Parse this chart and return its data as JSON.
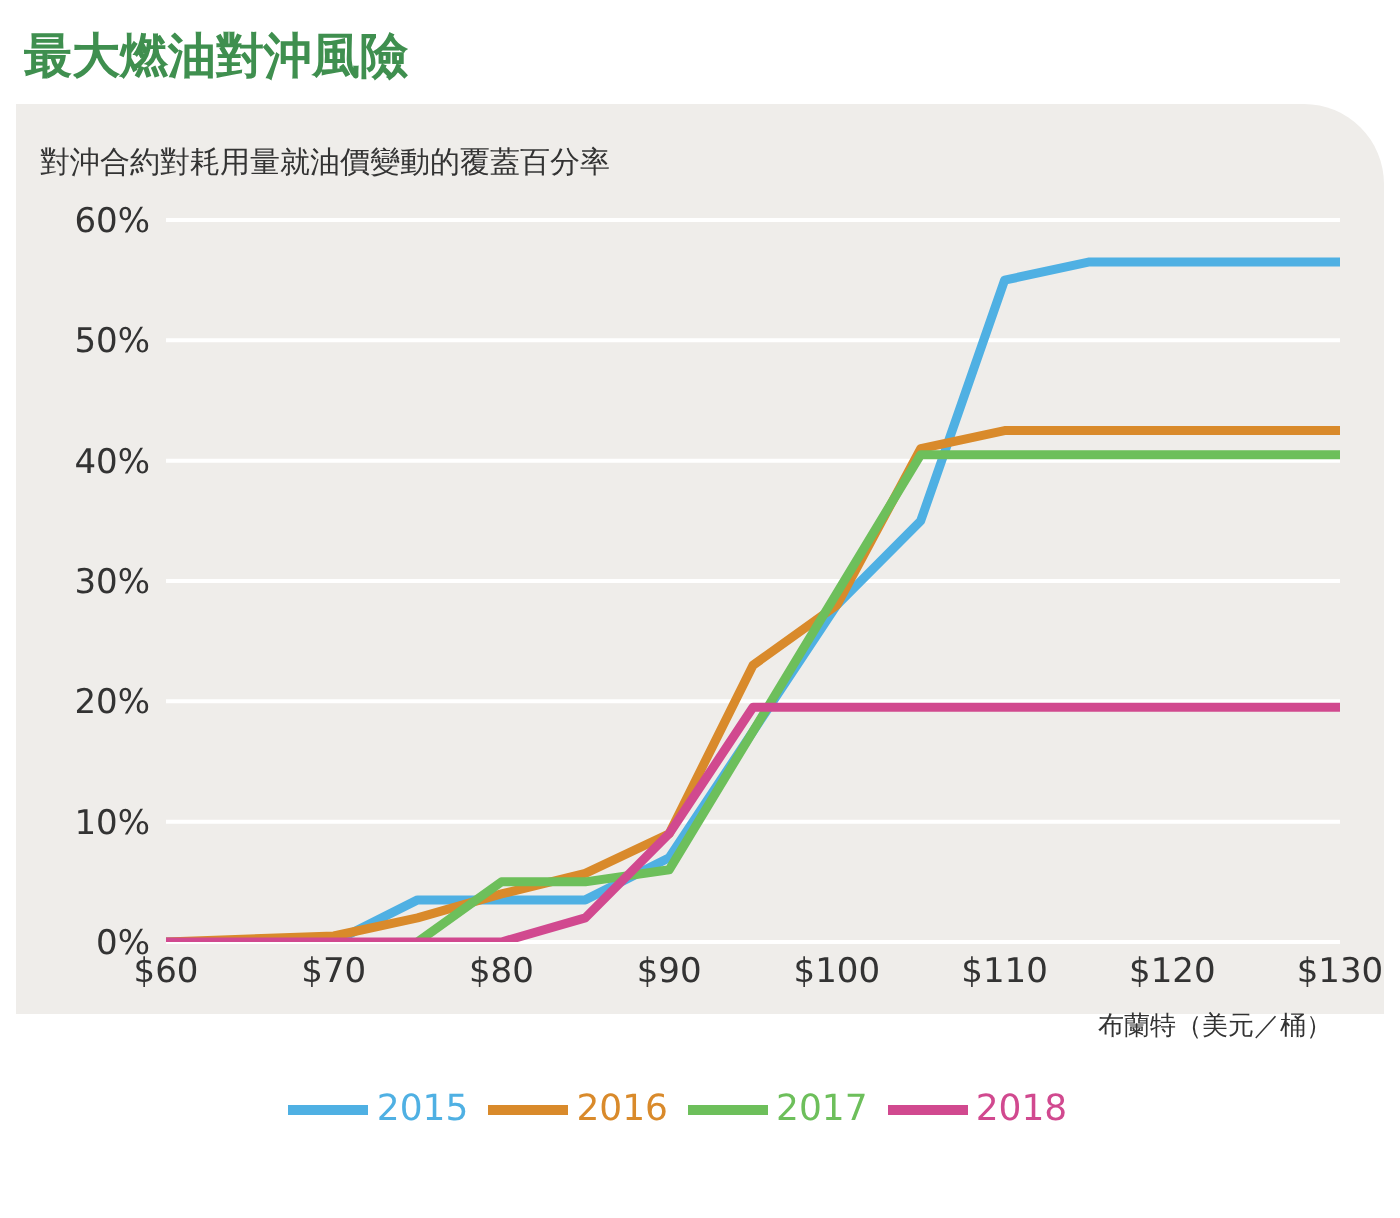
{
  "chart_data": {
    "type": "line",
    "title": "最大燃油對沖風險",
    "ylabel": "對沖合約對耗用量就油價變動的覆蓋百分率",
    "xlabel": "布蘭特（美元／桶）",
    "xlim": [
      60,
      130
    ],
    "xticks": [
      {
        "value": 60,
        "label": "$60"
      },
      {
        "value": 70,
        "label": "$70"
      },
      {
        "value": 80,
        "label": "$80"
      },
      {
        "value": 90,
        "label": "$90"
      },
      {
        "value": 100,
        "label": "$100"
      },
      {
        "value": 110,
        "label": "$110"
      },
      {
        "value": 120,
        "label": "$120"
      },
      {
        "value": 130,
        "label": "$130"
      }
    ],
    "ylim": [
      0,
      60
    ],
    "yticks": [
      {
        "value": 0,
        "label": "0%"
      },
      {
        "value": 10,
        "label": "10%"
      },
      {
        "value": 20,
        "label": "20%"
      },
      {
        "value": 30,
        "label": "30%"
      },
      {
        "value": 40,
        "label": "40%"
      },
      {
        "value": 50,
        "label": "50%"
      },
      {
        "value": 60,
        "label": "60%"
      }
    ],
    "grid": "y",
    "legend": "bottom",
    "marker": "none",
    "line_style": "solid",
    "series": [
      {
        "name": "2015",
        "color": "#4fb0e3",
        "x": [
          60,
          70,
          75,
          85,
          90,
          100,
          105,
          110,
          115,
          130
        ],
        "values": [
          0,
          0,
          3.5,
          3.5,
          7,
          28,
          35,
          55,
          56.5,
          56.5
        ]
      },
      {
        "name": "2016",
        "color": "#d98a2b",
        "x": [
          60,
          70,
          75,
          80,
          85,
          90,
          95,
          100,
          105,
          110,
          130
        ],
        "values": [
          0,
          0.5,
          2,
          4,
          5.7,
          9,
          23,
          28,
          41,
          42.5,
          42.5
        ]
      },
      {
        "name": "2017",
        "color": "#6dbf5b",
        "x": [
          75,
          80,
          85,
          90,
          105,
          130
        ],
        "values": [
          0,
          5,
          5,
          6,
          40.5,
          40.5
        ]
      },
      {
        "name": "2018",
        "color": "#d1498f",
        "x": [
          60,
          80,
          85,
          90,
          95,
          130
        ],
        "values": [
          0,
          0,
          2,
          9,
          19.5,
          19.5
        ]
      }
    ]
  }
}
